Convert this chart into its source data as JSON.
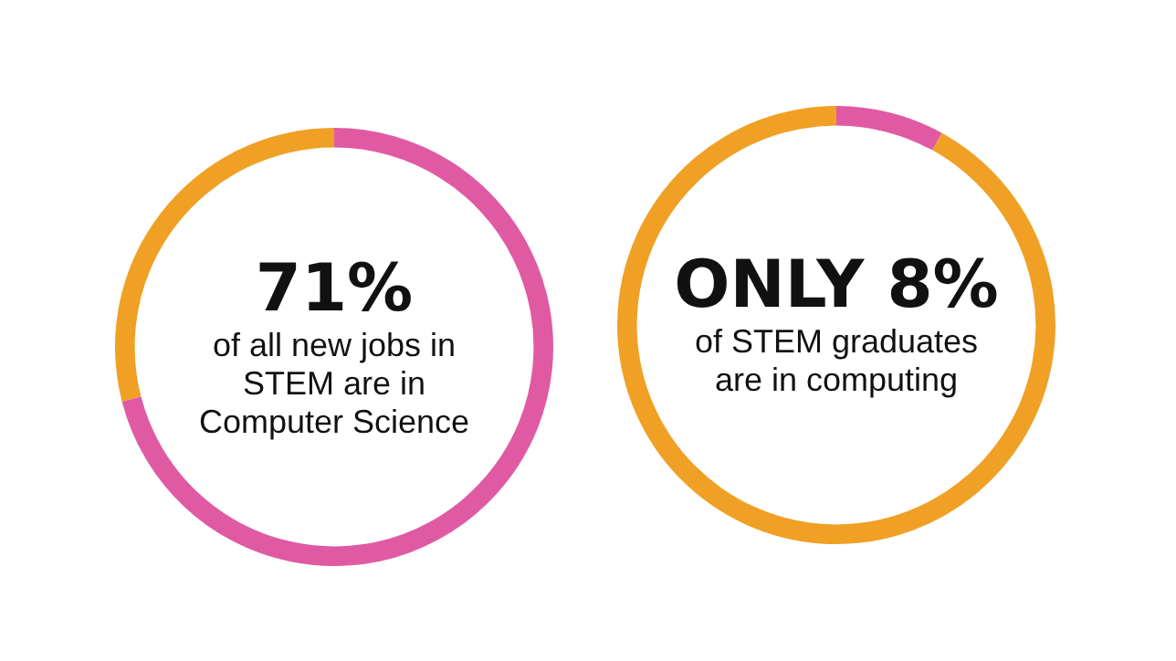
{
  "chart_data": [
    {
      "type": "donut",
      "title": "71%",
      "subtitle": "of all new jobs in STEM are in Computer Science",
      "categories": [
        null,
        null
      ],
      "values": [
        71,
        29
      ],
      "colors": [
        "#e05aa3",
        "#f0a024"
      ],
      "legend": false
    },
    {
      "type": "donut",
      "title": "ONLY 8%",
      "subtitle": "of STEM graduates are in computing",
      "categories": [
        null,
        null
      ],
      "values": [
        8,
        92
      ],
      "colors": [
        "#e05aa3",
        "#f0a024"
      ],
      "legend": false
    }
  ]
}
